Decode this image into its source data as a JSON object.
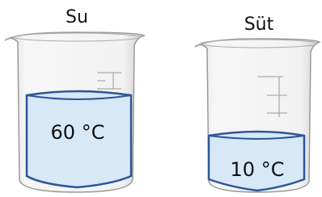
{
  "beakers": [
    {
      "label": "Su",
      "temperature": "60 °C"
    },
    {
      "label": "Süt",
      "temperature": "10 °C"
    }
  ]
}
